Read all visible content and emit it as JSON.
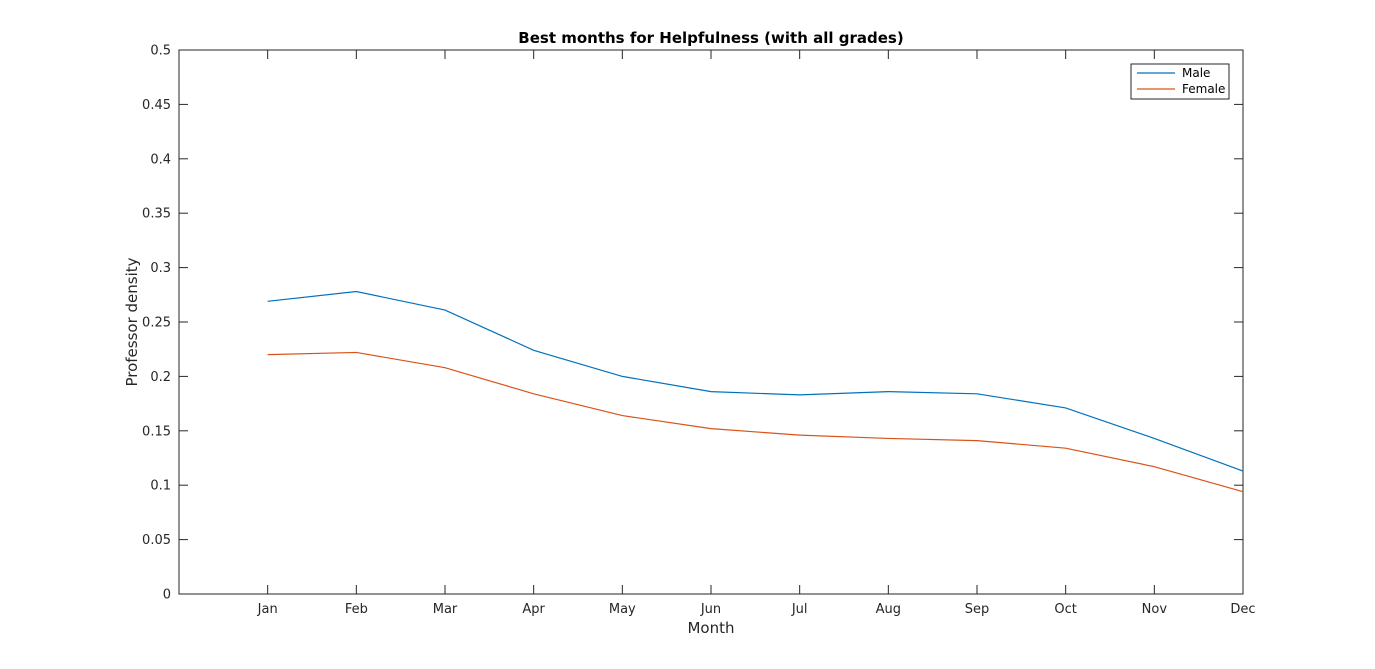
{
  "chart_data": {
    "type": "line",
    "title": "Best months for Helpfulness (with all grades)",
    "xlabel": "Month",
    "ylabel": "Professor density",
    "categories": [
      "Jan",
      "Feb",
      "Mar",
      "Apr",
      "May",
      "Jun",
      "Jul",
      "Aug",
      "Sep",
      "Oct",
      "Nov",
      "Dec"
    ],
    "xlim": [
      0,
      12
    ],
    "ylim": [
      0,
      0.5
    ],
    "yticks": [
      "0",
      "0.05",
      "0.1",
      "0.15",
      "0.2",
      "0.25",
      "0.3",
      "0.35",
      "0.4",
      "0.45",
      "0.5"
    ],
    "grid": false,
    "legend_position": "top-right",
    "series": [
      {
        "name": "Male",
        "color": "#0072bd",
        "values": [
          0.269,
          0.278,
          0.261,
          0.224,
          0.2,
          0.186,
          0.183,
          0.186,
          0.184,
          0.171,
          0.143,
          0.113
        ]
      },
      {
        "name": "Female",
        "color": "#d95319",
        "values": [
          0.22,
          0.222,
          0.208,
          0.184,
          0.164,
          0.152,
          0.146,
          0.143,
          0.141,
          0.134,
          0.117,
          0.094
        ]
      }
    ]
  }
}
